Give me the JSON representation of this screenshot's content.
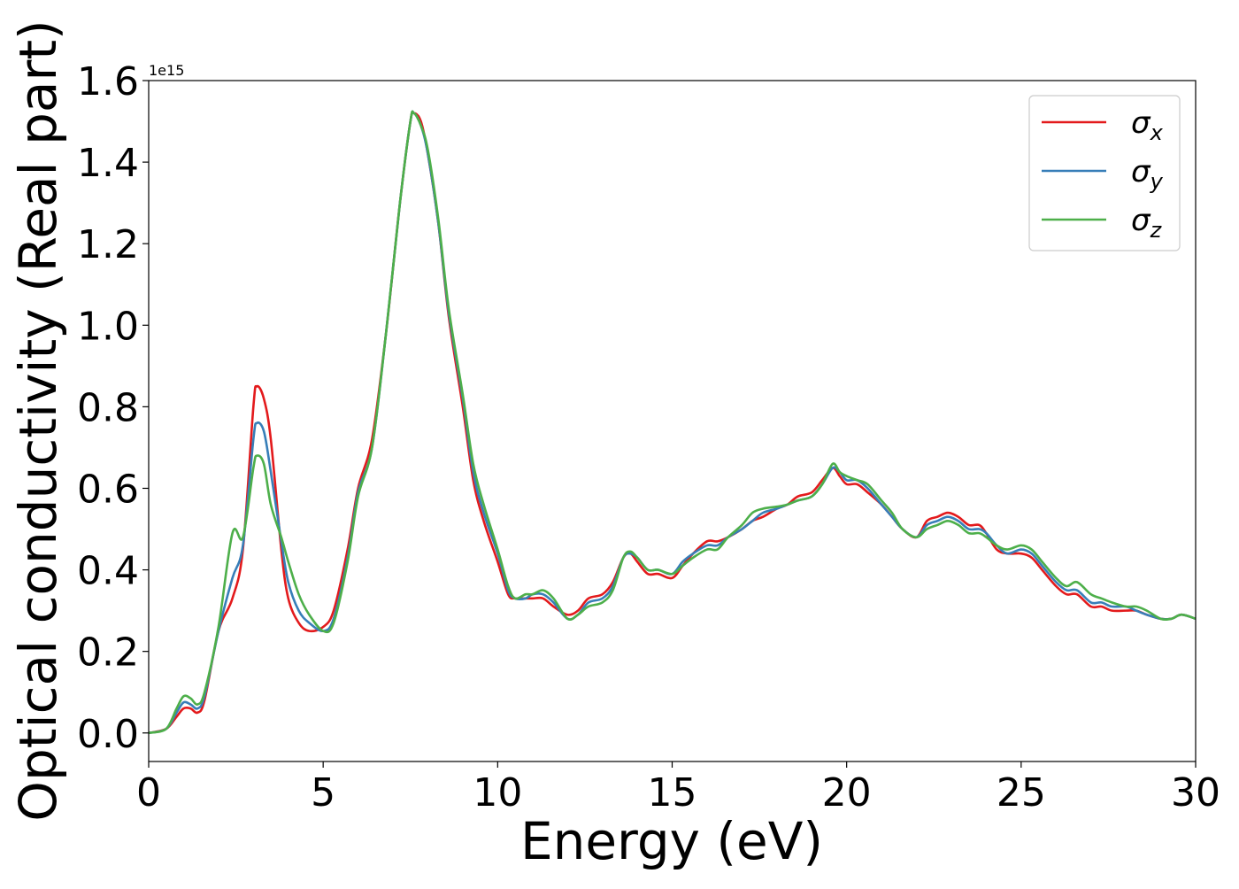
{
  "chart_data": {
    "type": "line",
    "xlabel": "Energy (eV)",
    "ylabel": "Optical conductivity (Real part)",
    "y_offset_label": "1e15",
    "xlim": [
      0,
      30
    ],
    "ylim": [
      -0.07,
      1.6
    ],
    "x_ticks": [
      0,
      5,
      10,
      15,
      20,
      25,
      30
    ],
    "x_tick_labels": [
      "0",
      "5",
      "10",
      "15",
      "20",
      "25",
      "30"
    ],
    "y_ticks": [
      0.0,
      0.2,
      0.4,
      0.6,
      0.8,
      1.0,
      1.2,
      1.4,
      1.6
    ],
    "y_tick_labels": [
      "0.0",
      "0.2",
      "0.4",
      "0.6",
      "0.8",
      "1.0",
      "1.2",
      "1.4",
      "1.6"
    ],
    "grid": false,
    "legend_position": "top-right",
    "series": [
      {
        "name": "σx",
        "symbol": "σ",
        "subscript": "x",
        "color": "#e31a1c",
        "x": [
          0,
          0.5,
          0.8,
          1.0,
          1.2,
          1.4,
          1.6,
          2.0,
          2.4,
          2.7,
          3.0,
          3.1,
          3.3,
          3.5,
          3.8,
          4.0,
          4.3,
          4.6,
          5.0,
          5.3,
          5.7,
          6.0,
          6.4,
          6.8,
          7.2,
          7.5,
          7.6,
          7.8,
          8.0,
          8.3,
          8.6,
          9.0,
          9.3,
          9.6,
          10.0,
          10.3,
          10.5,
          10.8,
          11.0,
          11.3,
          11.6,
          12.0,
          12.3,
          12.6,
          13.0,
          13.3,
          13.6,
          13.8,
          14.0,
          14.3,
          14.6,
          15.0,
          15.3,
          15.6,
          16.0,
          16.3,
          16.6,
          17.0,
          17.3,
          17.6,
          18.0,
          18.3,
          18.6,
          19.0,
          19.3,
          19.6,
          19.8,
          20.0,
          20.3,
          20.6,
          21.0,
          21.3,
          21.6,
          22.0,
          22.3,
          22.6,
          22.9,
          23.2,
          23.5,
          23.8,
          24.0,
          24.3,
          24.6,
          25.0,
          25.3,
          25.6,
          26.0,
          26.3,
          26.6,
          27.0,
          27.3,
          27.6,
          28.0,
          28.3,
          28.6,
          29.0,
          29.3,
          29.6,
          30.0
        ],
        "values": [
          0.0,
          0.01,
          0.04,
          0.06,
          0.06,
          0.05,
          0.08,
          0.25,
          0.33,
          0.45,
          0.8,
          0.85,
          0.82,
          0.72,
          0.45,
          0.33,
          0.27,
          0.25,
          0.26,
          0.3,
          0.45,
          0.6,
          0.72,
          0.98,
          1.3,
          1.5,
          1.52,
          1.5,
          1.42,
          1.25,
          1.02,
          0.8,
          0.62,
          0.52,
          0.42,
          0.34,
          0.33,
          0.33,
          0.33,
          0.33,
          0.31,
          0.29,
          0.3,
          0.33,
          0.34,
          0.37,
          0.43,
          0.44,
          0.42,
          0.39,
          0.39,
          0.38,
          0.41,
          0.44,
          0.47,
          0.47,
          0.48,
          0.5,
          0.52,
          0.53,
          0.55,
          0.56,
          0.58,
          0.59,
          0.62,
          0.65,
          0.63,
          0.61,
          0.61,
          0.59,
          0.56,
          0.53,
          0.5,
          0.48,
          0.52,
          0.53,
          0.54,
          0.53,
          0.51,
          0.51,
          0.49,
          0.45,
          0.44,
          0.44,
          0.43,
          0.4,
          0.36,
          0.34,
          0.34,
          0.31,
          0.31,
          0.3,
          0.3,
          0.3,
          0.29,
          0.28,
          0.28,
          0.29,
          0.28
        ]
      },
      {
        "name": "σy",
        "symbol": "σ",
        "subscript": "y",
        "color": "#377eb8",
        "x": [
          0,
          0.5,
          0.8,
          1.0,
          1.2,
          1.4,
          1.6,
          2.0,
          2.4,
          2.7,
          3.0,
          3.1,
          3.3,
          3.5,
          3.8,
          4.0,
          4.3,
          4.6,
          5.0,
          5.3,
          5.7,
          6.0,
          6.4,
          6.8,
          7.2,
          7.5,
          7.6,
          7.8,
          8.0,
          8.3,
          8.6,
          9.0,
          9.3,
          9.6,
          10.0,
          10.3,
          10.5,
          10.8,
          11.0,
          11.3,
          11.6,
          12.0,
          12.3,
          12.6,
          13.0,
          13.3,
          13.6,
          13.8,
          14.0,
          14.3,
          14.6,
          15.0,
          15.3,
          15.6,
          16.0,
          16.3,
          16.6,
          17.0,
          17.3,
          17.6,
          18.0,
          18.3,
          18.6,
          19.0,
          19.3,
          19.6,
          19.8,
          20.0,
          20.3,
          20.6,
          21.0,
          21.3,
          21.6,
          22.0,
          22.3,
          22.6,
          22.9,
          23.2,
          23.5,
          23.8,
          24.0,
          24.3,
          24.6,
          25.0,
          25.3,
          25.6,
          26.0,
          26.3,
          26.6,
          27.0,
          27.3,
          27.6,
          28.0,
          28.3,
          28.6,
          29.0,
          29.3,
          29.6,
          30.0
        ],
        "values": [
          0.0,
          0.01,
          0.05,
          0.075,
          0.07,
          0.06,
          0.09,
          0.25,
          0.38,
          0.46,
          0.72,
          0.76,
          0.74,
          0.64,
          0.47,
          0.37,
          0.3,
          0.27,
          0.25,
          0.28,
          0.43,
          0.59,
          0.7,
          0.98,
          1.3,
          1.5,
          1.52,
          1.49,
          1.42,
          1.25,
          1.03,
          0.82,
          0.64,
          0.54,
          0.44,
          0.35,
          0.33,
          0.33,
          0.34,
          0.34,
          0.32,
          0.28,
          0.29,
          0.32,
          0.33,
          0.36,
          0.43,
          0.44,
          0.43,
          0.4,
          0.4,
          0.39,
          0.42,
          0.44,
          0.46,
          0.46,
          0.48,
          0.5,
          0.52,
          0.54,
          0.55,
          0.56,
          0.57,
          0.58,
          0.61,
          0.65,
          0.64,
          0.62,
          0.62,
          0.6,
          0.56,
          0.53,
          0.5,
          0.48,
          0.51,
          0.52,
          0.53,
          0.52,
          0.5,
          0.5,
          0.49,
          0.46,
          0.44,
          0.45,
          0.44,
          0.41,
          0.37,
          0.35,
          0.35,
          0.32,
          0.32,
          0.31,
          0.31,
          0.3,
          0.29,
          0.28,
          0.28,
          0.29,
          0.28
        ]
      },
      {
        "name": "σz",
        "symbol": "σ",
        "subscript": "z",
        "color": "#4daf4a",
        "x": [
          0,
          0.5,
          0.8,
          1.0,
          1.2,
          1.4,
          1.6,
          2.0,
          2.4,
          2.7,
          3.0,
          3.1,
          3.3,
          3.5,
          3.8,
          4.0,
          4.3,
          4.6,
          5.0,
          5.3,
          5.7,
          6.0,
          6.4,
          6.8,
          7.2,
          7.5,
          7.6,
          7.8,
          8.0,
          8.3,
          8.6,
          9.0,
          9.3,
          9.6,
          10.0,
          10.3,
          10.5,
          10.8,
          11.0,
          11.3,
          11.6,
          12.0,
          12.3,
          12.6,
          13.0,
          13.3,
          13.6,
          13.8,
          14.0,
          14.3,
          14.6,
          15.0,
          15.3,
          15.6,
          16.0,
          16.3,
          16.6,
          17.0,
          17.3,
          17.6,
          18.0,
          18.3,
          18.6,
          19.0,
          19.3,
          19.6,
          19.8,
          20.0,
          20.3,
          20.6,
          21.0,
          21.3,
          21.6,
          22.0,
          22.3,
          22.6,
          22.9,
          23.2,
          23.5,
          23.8,
          24.0,
          24.3,
          24.6,
          25.0,
          25.3,
          25.6,
          26.0,
          26.3,
          26.6,
          27.0,
          27.3,
          27.6,
          28.0,
          28.3,
          28.6,
          29.0,
          29.3,
          29.6,
          30.0
        ],
        "values": [
          0.0,
          0.01,
          0.06,
          0.09,
          0.085,
          0.07,
          0.1,
          0.26,
          0.49,
          0.48,
          0.65,
          0.68,
          0.66,
          0.56,
          0.48,
          0.42,
          0.34,
          0.29,
          0.25,
          0.27,
          0.42,
          0.58,
          0.7,
          0.98,
          1.3,
          1.5,
          1.52,
          1.49,
          1.43,
          1.26,
          1.04,
          0.83,
          0.66,
          0.56,
          0.45,
          0.36,
          0.33,
          0.34,
          0.34,
          0.35,
          0.33,
          0.28,
          0.29,
          0.31,
          0.32,
          0.35,
          0.43,
          0.445,
          0.43,
          0.4,
          0.4,
          0.39,
          0.41,
          0.43,
          0.45,
          0.45,
          0.48,
          0.51,
          0.54,
          0.55,
          0.555,
          0.56,
          0.57,
          0.58,
          0.61,
          0.66,
          0.64,
          0.63,
          0.62,
          0.61,
          0.57,
          0.54,
          0.5,
          0.48,
          0.5,
          0.51,
          0.52,
          0.51,
          0.49,
          0.49,
          0.48,
          0.46,
          0.45,
          0.46,
          0.45,
          0.42,
          0.38,
          0.36,
          0.37,
          0.34,
          0.33,
          0.32,
          0.31,
          0.31,
          0.3,
          0.28,
          0.28,
          0.29,
          0.28
        ]
      }
    ]
  }
}
